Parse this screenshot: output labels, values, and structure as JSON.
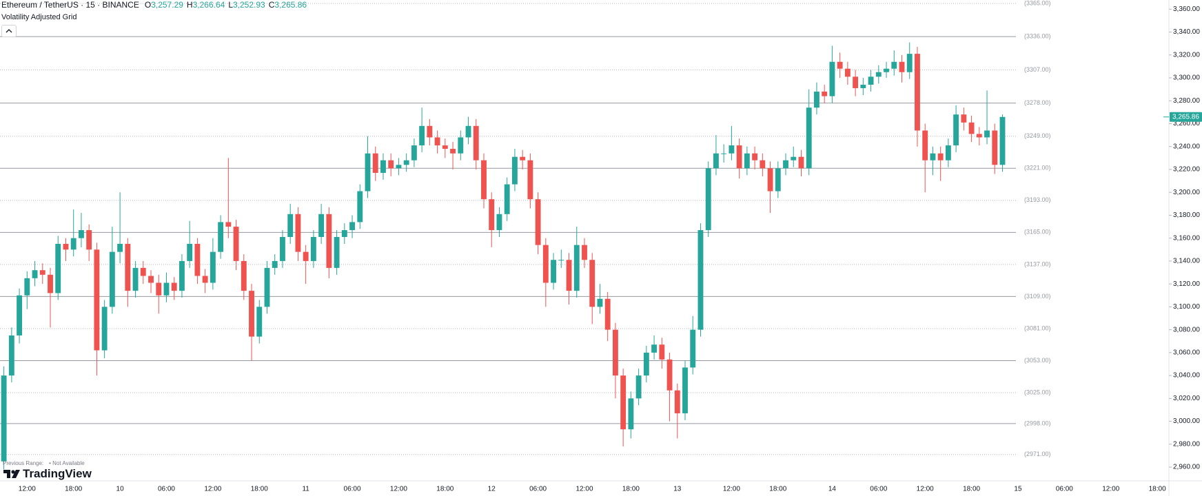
{
  "header": {
    "symbol": "Ethereum / TetherUS · 15 · BINANCE",
    "ohlc": [
      {
        "key": "O",
        "value": "3,257.29"
      },
      {
        "key": "H",
        "value": "3,266.64"
      },
      {
        "key": "L",
        "value": "3,252.93"
      },
      {
        "key": "C",
        "value": "3,265.86"
      }
    ],
    "indicator": "Volatility Adjusted Grid"
  },
  "footer": {
    "previous_range": "Previous Range:",
    "status": "• Not Available",
    "logo": "TradingView"
  },
  "chart_data": {
    "type": "candlestick",
    "up_color": "#26a69a",
    "down_color": "#ef5350",
    "ylim": [
      2948,
      3368
    ],
    "yticks": [
      {
        "value": 3360,
        "label": "3,360.00"
      },
      {
        "value": 3340,
        "label": "3,340.00"
      },
      {
        "value": 3320,
        "label": "3,320.00"
      },
      {
        "value": 3300,
        "label": "3,300.00"
      },
      {
        "value": 3280,
        "label": "3,280.00"
      },
      {
        "value": 3260,
        "label": "3,260.00"
      },
      {
        "value": 3240,
        "label": "3,240.00"
      },
      {
        "value": 3220,
        "label": "3,220.00"
      },
      {
        "value": 3200,
        "label": "3,200.00"
      },
      {
        "value": 3180,
        "label": "3,180.00"
      },
      {
        "value": 3160,
        "label": "3,160.00"
      },
      {
        "value": 3140,
        "label": "3,140.00"
      },
      {
        "value": 3120,
        "label": "3,120.00"
      },
      {
        "value": 3100,
        "label": "3,100.00"
      },
      {
        "value": 3080,
        "label": "3,080.00"
      },
      {
        "value": 3060,
        "label": "3,060.00"
      },
      {
        "value": 3040,
        "label": "3,040.00"
      },
      {
        "value": 3020,
        "label": "3,020.00"
      },
      {
        "value": 3000,
        "label": "3,000.00"
      },
      {
        "value": 2980,
        "label": "2,980.00"
      },
      {
        "value": 2960,
        "label": "2,960.00"
      }
    ],
    "grid_levels": [
      {
        "value": 3365,
        "label": "(3365.00)",
        "style": "dotted"
      },
      {
        "value": 3336,
        "label": "(3336.00)",
        "style": "solid"
      },
      {
        "value": 3307,
        "label": "(3307.00)",
        "style": "dotted"
      },
      {
        "value": 3278,
        "label": "(3278.00)",
        "style": "solid"
      },
      {
        "value": 3249,
        "label": "(3249.00)",
        "style": "dotted"
      },
      {
        "value": 3221,
        "label": "(3221.00)",
        "style": "solid"
      },
      {
        "value": 3193,
        "label": "(3193.00)",
        "style": "dotted"
      },
      {
        "value": 3165,
        "label": "(3165.00)",
        "style": "solid"
      },
      {
        "value": 3137,
        "label": "(3137.00)",
        "style": "dotted"
      },
      {
        "value": 3109,
        "label": "(3109.00)",
        "style": "solid"
      },
      {
        "value": 3081,
        "label": "(3081.00)",
        "style": "dotted"
      },
      {
        "value": 3053,
        "label": "(3053.00)",
        "style": "solid"
      },
      {
        "value": 3025,
        "label": "(3025.00)",
        "style": "dotted"
      },
      {
        "value": 2998,
        "label": "(2998.00)",
        "style": "solid"
      },
      {
        "value": 2971,
        "label": "(2971.00)",
        "style": "dotted"
      }
    ],
    "last_price": {
      "value": 3265.86,
      "label": "3,265.86"
    },
    "categories": [
      null,
      null,
      null,
      "12:00",
      null,
      null,
      null,
      null,
      null,
      "18:00",
      null,
      null,
      null,
      null,
      null,
      "10",
      null,
      null,
      null,
      null,
      null,
      "06:00",
      null,
      null,
      null,
      null,
      null,
      "12:00",
      null,
      null,
      null,
      null,
      null,
      "18:00",
      null,
      null,
      null,
      null,
      null,
      "11",
      null,
      null,
      null,
      null,
      null,
      "06:00",
      null,
      null,
      null,
      null,
      null,
      "12:00",
      null,
      null,
      null,
      null,
      null,
      "18:00",
      null,
      null,
      null,
      null,
      null,
      "12",
      null,
      null,
      null,
      null,
      null,
      "06:00",
      null,
      null,
      null,
      null,
      null,
      "12:00",
      null,
      null,
      null,
      null,
      null,
      "18:00",
      null,
      null,
      null,
      null,
      null,
      "13",
      null,
      null,
      null,
      null,
      null,
      null,
      "12:00",
      null,
      null,
      null,
      null,
      null,
      "18:00",
      null,
      null,
      null,
      null,
      null,
      null,
      "14",
      null,
      null,
      null,
      null,
      null,
      "06:00",
      null,
      null,
      null,
      null,
      null,
      "12:00",
      null,
      null,
      null,
      null,
      null,
      "18:00",
      null,
      null,
      null,
      null,
      null,
      "15",
      null,
      null,
      null,
      null,
      null,
      "06:00",
      null,
      null,
      null,
      null,
      null,
      "12:00",
      null,
      null,
      null,
      null,
      null,
      "18:00",
      null
    ],
    "open": [
      2965,
      3040,
      3075,
      3110,
      3125,
      3132,
      3128,
      3112,
      3155,
      3150,
      3160,
      3167,
      3150,
      3062,
      3100,
      3148,
      3155,
      3114,
      3134,
      3127,
      3121,
      3110,
      3121,
      3114,
      3140,
      3155,
      3127,
      3121,
      3148,
      3174,
      3170,
      3140,
      3114,
      3074,
      3100,
      3134,
      3140,
      3161,
      3181,
      3148,
      3140,
      3161,
      3181,
      3134,
      3161,
      3167,
      3174,
      3201,
      3234,
      3217,
      3228,
      3221,
      3224,
      3228,
      3241,
      3258,
      3248,
      3241,
      3238,
      3234,
      3248,
      3258,
      3228,
      3194,
      3167,
      3181,
      3207,
      3231,
      3228,
      3194,
      3154,
      3121,
      3141,
      3141,
      3114,
      3154,
      3141,
      3100,
      3107,
      3080,
      3040,
      2993,
      3020,
      3040,
      3060,
      3067,
      3054,
      3027,
      3007,
      3047,
      3080,
      3167,
      3221,
      3234,
      3234,
      3241,
      3221,
      3234,
      3228,
      3221,
      3201,
      3221,
      3228,
      3231,
      3221,
      3274,
      3288,
      3284,
      3314,
      3308,
      3301,
      3291,
      3294,
      3301,
      3305,
      3308,
      3314,
      3305,
      3321,
      3254,
      3228,
      3234,
      3228,
      3241,
      3268,
      3261,
      3251,
      3248,
      3254,
      3224,
      null,
      null,
      null,
      null,
      null,
      null,
      null,
      null,
      null,
      null,
      null,
      null,
      null,
      null,
      null,
      null,
      null,
      null,
      null,
      null,
      null
    ],
    "high": [
      3048,
      3082,
      3116,
      3131,
      3140,
      3138,
      3134,
      3162,
      3160,
      3185,
      3182,
      3172,
      3156,
      3106,
      3170,
      3200,
      3160,
      3140,
      3140,
      3132,
      3128,
      3130,
      3126,
      3146,
      3175,
      3160,
      3133,
      3160,
      3180,
      3230,
      3176,
      3146,
      3120,
      3106,
      3140,
      3146,
      3167,
      3190,
      3187,
      3154,
      3167,
      3190,
      3187,
      3167,
      3173,
      3180,
      3207,
      3249,
      3240,
      3234,
      3234,
      3230,
      3234,
      3247,
      3274,
      3264,
      3254,
      3247,
      3244,
      3254,
      3266,
      3264,
      3234,
      3200,
      3187,
      3213,
      3238,
      3237,
      3234,
      3200,
      3160,
      3147,
      3150,
      3147,
      3170,
      3160,
      3147,
      3120,
      3113,
      3086,
      3046,
      3026,
      3046,
      3066,
      3075,
      3073,
      3060,
      3033,
      3053,
      3092,
      3173,
      3227,
      3250,
      3242,
      3258,
      3247,
      3240,
      3240,
      3234,
      3227,
      3227,
      3234,
      3240,
      3237,
      3290,
      3296,
      3294,
      3328,
      3322,
      3314,
      3307,
      3300,
      3307,
      3311,
      3314,
      3324,
      3320,
      3331,
      3327,
      3260,
      3240,
      3240,
      3247,
      3276,
      3274,
      3267,
      3257,
      3289,
      3260,
      3268,
      null,
      null,
      null,
      null,
      null,
      null,
      null,
      null,
      null,
      null,
      null,
      null,
      null,
      null,
      null,
      null,
      null,
      null,
      null,
      null,
      null
    ],
    "low": [
      2958,
      3034,
      3068,
      3098,
      3118,
      3120,
      3082,
      3106,
      3140,
      3144,
      3152,
      3140,
      3040,
      3055,
      3094,
      3138,
      3100,
      3108,
      3120,
      3112,
      3094,
      3104,
      3106,
      3108,
      3134,
      3120,
      3112,
      3115,
      3142,
      3160,
      3132,
      3106,
      3053,
      3068,
      3094,
      3128,
      3134,
      3155,
      3140,
      3120,
      3134,
      3155,
      3125,
      3128,
      3155,
      3160,
      3168,
      3195,
      3210,
      3211,
      3214,
      3215,
      3218,
      3222,
      3235,
      3241,
      3234,
      3230,
      3220,
      3228,
      3242,
      3220,
      3186,
      3152,
      3161,
      3175,
      3201,
      3220,
      3186,
      3146,
      3100,
      3115,
      3134,
      3102,
      3108,
      3134,
      3085,
      3094,
      3070,
      3020,
      2978,
      2985,
      3014,
      3034,
      3054,
      3046,
      3000,
      2985,
      3001,
      3041,
      3074,
      3161,
      3215,
      3226,
      3228,
      3212,
      3215,
      3220,
      3214,
      3182,
      3195,
      3215,
      3222,
      3214,
      3215,
      3268,
      3278,
      3278,
      3300,
      3294,
      3284,
      3285,
      3288,
      3295,
      3300,
      3302,
      3296,
      3299,
      3240,
      3200,
      3215,
      3210,
      3222,
      3235,
      3254,
      3244,
      3241,
      3242,
      3216,
      3218,
      null,
      null,
      null,
      null,
      null,
      null,
      null,
      null,
      null,
      null,
      null,
      null,
      null,
      null,
      null,
      null,
      null,
      null,
      null,
      null,
      null
    ],
    "close": [
      3040,
      3075,
      3110,
      3125,
      3132,
      3128,
      3112,
      3155,
      3150,
      3160,
      3167,
      3150,
      3062,
      3100,
      3148,
      3155,
      3114,
      3134,
      3127,
      3121,
      3110,
      3121,
      3114,
      3140,
      3155,
      3127,
      3121,
      3148,
      3174,
      3170,
      3140,
      3114,
      3074,
      3100,
      3134,
      3140,
      3161,
      3181,
      3148,
      3140,
      3161,
      3181,
      3134,
      3161,
      3167,
      3174,
      3201,
      3234,
      3217,
      3228,
      3221,
      3224,
      3228,
      3241,
      3258,
      3248,
      3241,
      3238,
      3234,
      3248,
      3258,
      3228,
      3194,
      3167,
      3181,
      3207,
      3231,
      3228,
      3194,
      3154,
      3121,
      3141,
      3141,
      3114,
      3154,
      3141,
      3100,
      3107,
      3080,
      3040,
      2993,
      3020,
      3040,
      3060,
      3067,
      3054,
      3027,
      3007,
      3047,
      3080,
      3167,
      3221,
      3234,
      3234,
      3241,
      3221,
      3234,
      3228,
      3221,
      3201,
      3221,
      3228,
      3231,
      3221,
      3274,
      3288,
      3284,
      3314,
      3308,
      3301,
      3291,
      3294,
      3301,
      3305,
      3308,
      3314,
      3305,
      3321,
      3254,
      3228,
      3234,
      3228,
      3241,
      3268,
      3261,
      3251,
      3248,
      3254,
      3224,
      3265.86,
      null,
      null,
      null,
      null,
      null,
      null,
      null,
      null,
      null,
      null,
      null,
      null,
      null,
      null,
      null,
      null,
      null,
      null,
      null,
      null,
      null
    ]
  }
}
